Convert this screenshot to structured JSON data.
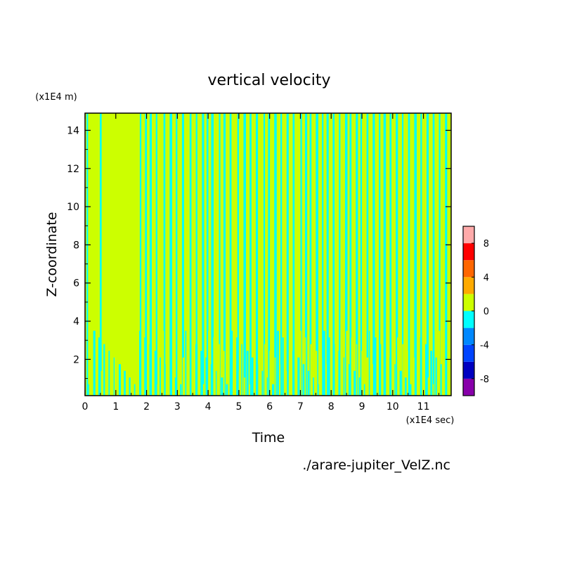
{
  "chart_data": {
    "type": "heatmap",
    "title": "vertical velocity",
    "xlabel": "Time",
    "ylabel": "Z-coordinate",
    "x_unit": "(x1E4 sec)",
    "y_unit": "(x1E4 m)",
    "xlim": [
      0,
      11.9
    ],
    "ylim": [
      0.1,
      14.9
    ],
    "x_ticks": [
      0,
      1,
      2,
      3,
      4,
      5,
      6,
      7,
      8,
      9,
      10,
      11
    ],
    "y_ticks": [
      2,
      4,
      6,
      8,
      10,
      12,
      14
    ],
    "colorbar": {
      "levels": [
        -10,
        -8,
        -6,
        -4,
        -2,
        0,
        2,
        4,
        6,
        8,
        10
      ],
      "colors": [
        "#8800aa",
        "#0000c0",
        "#0044ff",
        "#0088ff",
        "#00ffff",
        "#ccff00",
        "#ffaa00",
        "#ff6600",
        "#ff0000",
        "#ffaaaa"
      ],
      "tick_labels": [
        "-8",
        "-4",
        "0",
        "4",
        "8"
      ]
    },
    "pattern_note_values": {
      "dominant_upper_band": [
        0,
        2
      ],
      "dominant_lower_band": [
        -2,
        0
      ]
    },
    "cyan_band_x": [
      0.05,
      0.48,
      1.78,
      1.95,
      2.1,
      2.3,
      2.55,
      2.75,
      2.95,
      3.15,
      3.4,
      3.6,
      3.8,
      3.95,
      4.1,
      4.35,
      4.5,
      4.7,
      4.95,
      5.15,
      5.35,
      5.55,
      5.8,
      5.95,
      6.15,
      6.35,
      6.55,
      6.75,
      7.0,
      7.15,
      7.3,
      7.5,
      7.7,
      7.85,
      8.05,
      8.25,
      8.45,
      8.6,
      8.8,
      8.95,
      9.15,
      9.35,
      9.55,
      9.7,
      9.9,
      10.1,
      10.3,
      10.5,
      10.7,
      10.9,
      11.1,
      11.3,
      11.5,
      11.7
    ],
    "cyan_band_width": [
      0.05,
      0.06,
      0.05,
      0.06,
      0.07,
      0.05,
      0.06,
      0.08,
      0.05,
      0.07,
      0.06,
      0.05,
      0.07,
      0.06,
      0.08,
      0.05,
      0.07,
      0.06,
      0.05,
      0.08,
      0.06,
      0.07,
      0.05,
      0.06,
      0.08,
      0.05,
      0.07,
      0.06,
      0.05,
      0.07,
      0.06,
      0.08,
      0.05,
      0.07,
      0.06,
      0.05,
      0.08,
      0.06,
      0.07,
      0.05,
      0.06,
      0.07,
      0.05,
      0.08,
      0.06,
      0.07,
      0.05,
      0.06,
      0.08,
      0.05,
      0.07,
      0.06,
      0.05,
      0.07
    ]
  },
  "footer": {
    "filename": "./arare-jupiter_VelZ.nc"
  }
}
